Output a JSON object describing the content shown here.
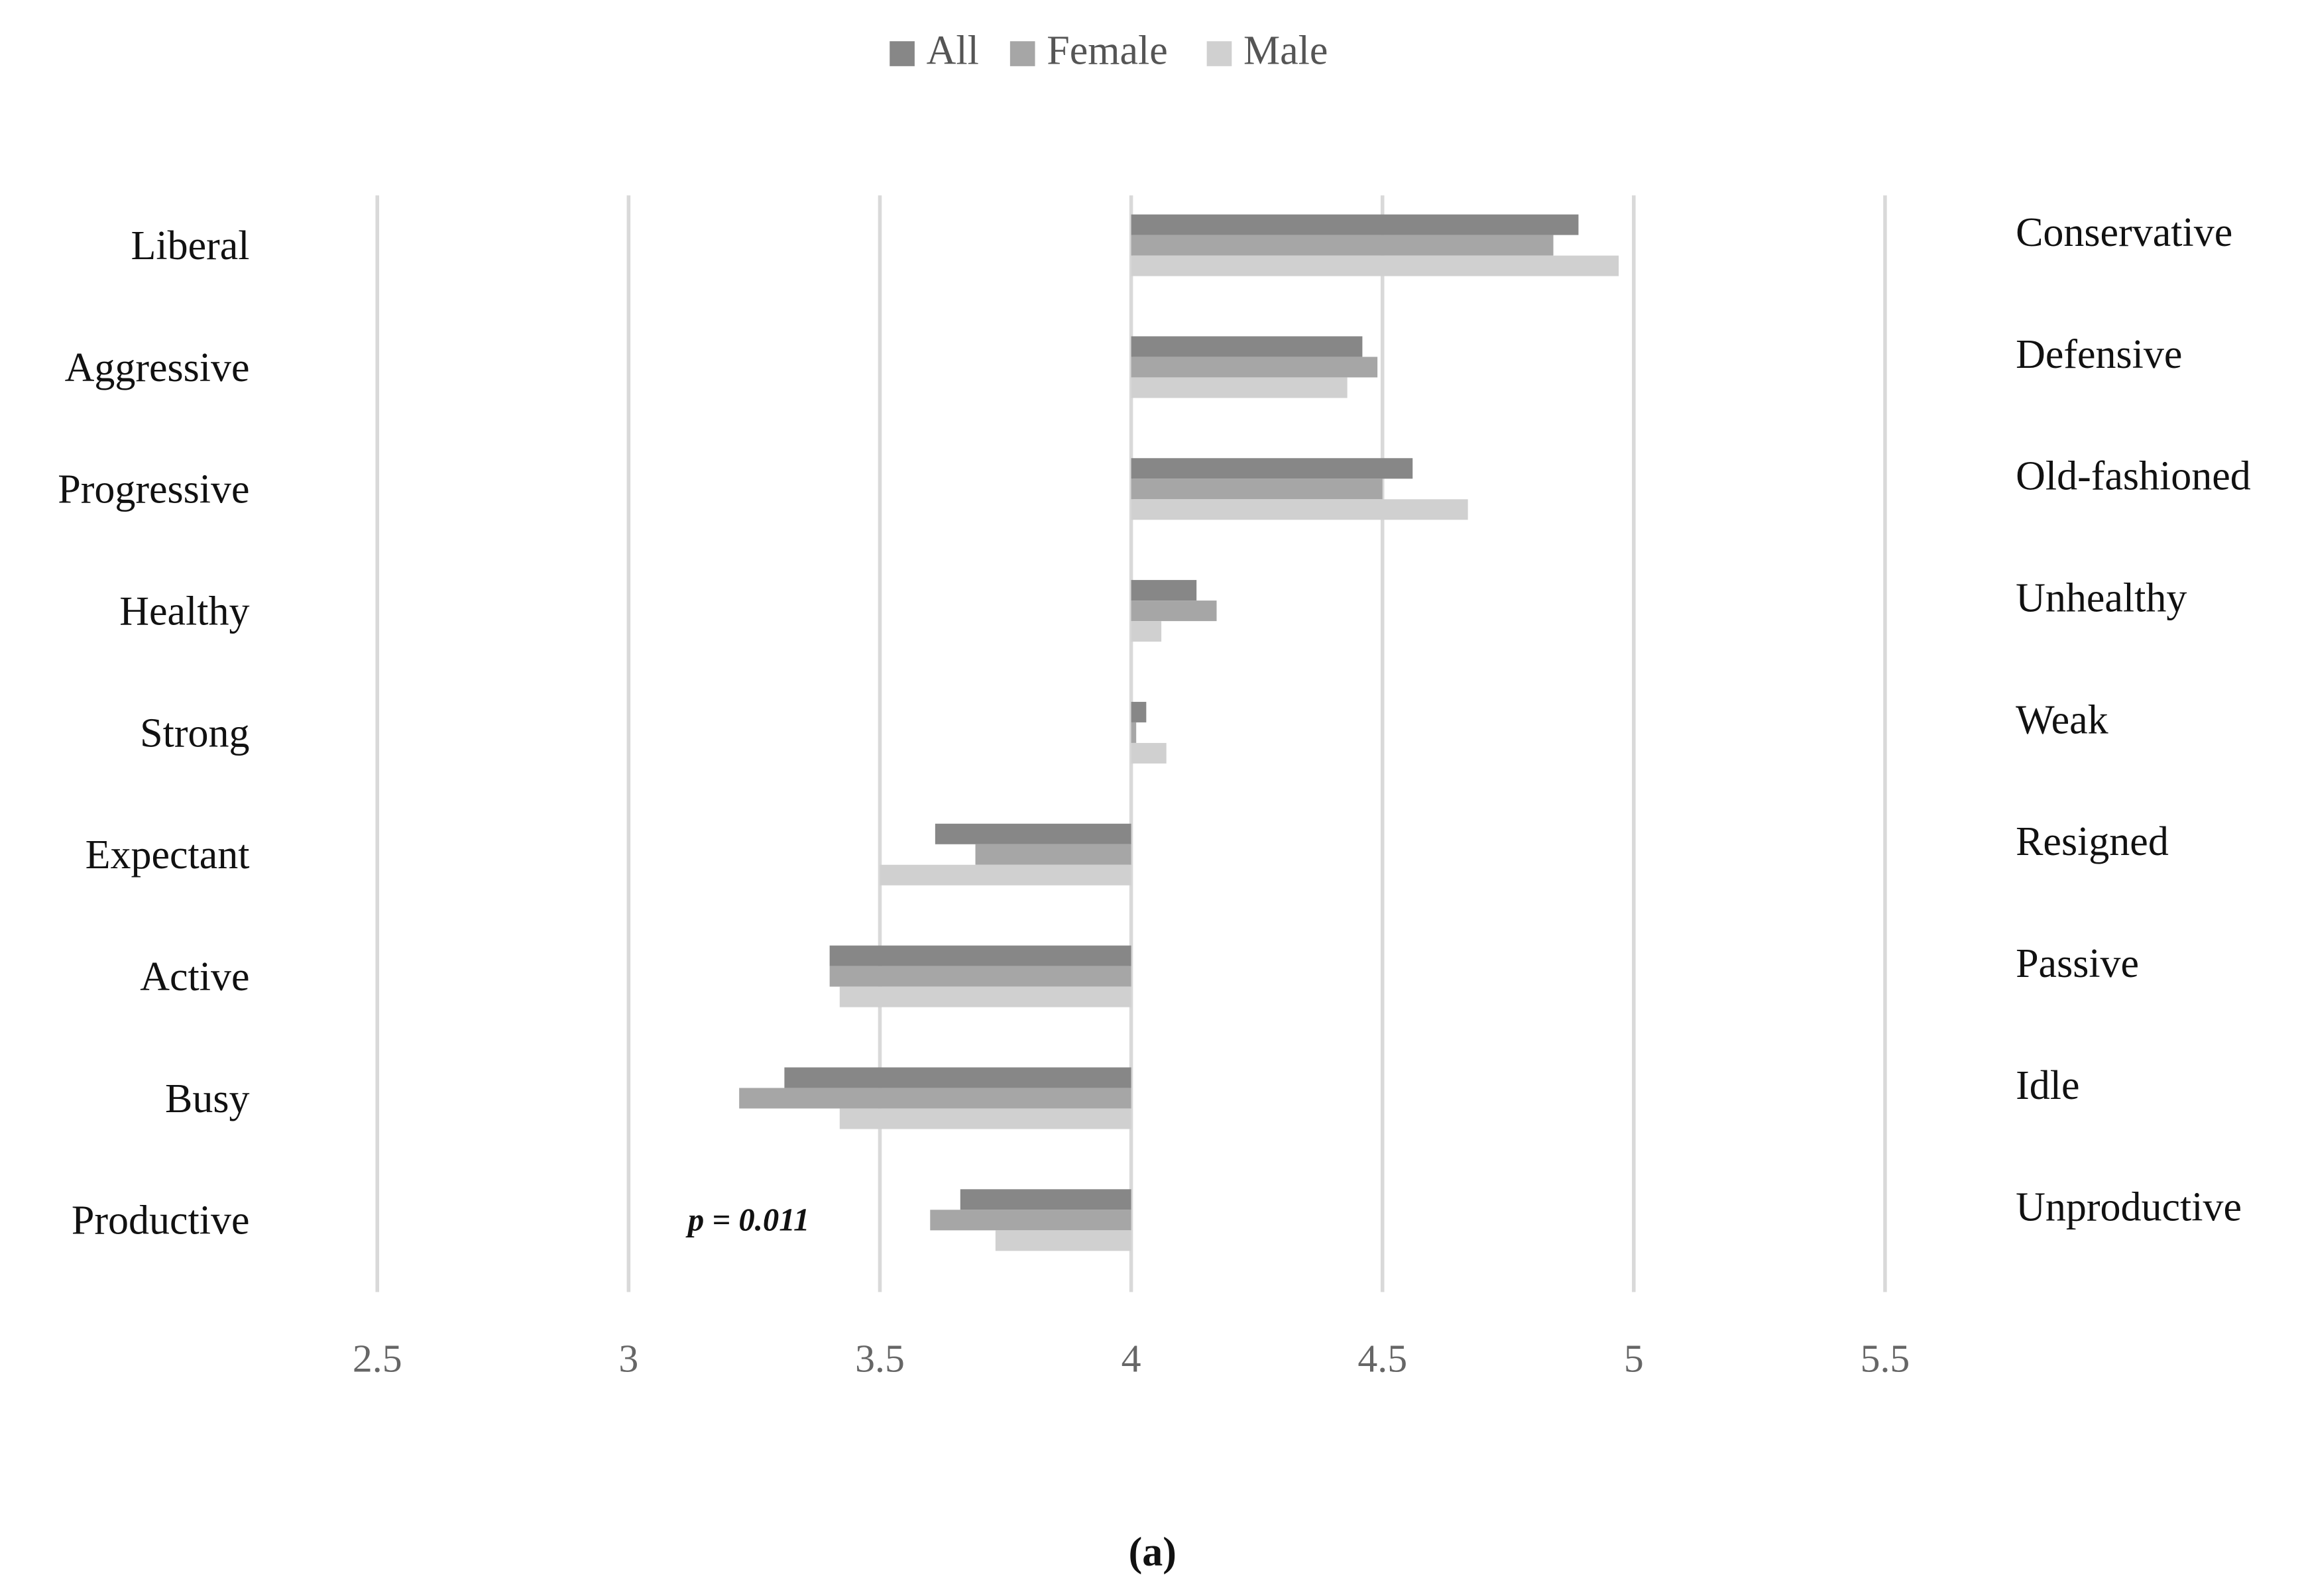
{
  "chart_data": {
    "type": "bar",
    "orientation": "horizontal",
    "base": 4,
    "categories": [
      "Liberal",
      "Aggressive",
      "Progressive",
      "Healthy",
      "Strong",
      "Expectant",
      "Active",
      "Busy",
      "Productive"
    ],
    "right_labels": [
      "Conservative",
      "Defensive",
      "Old-fashioned",
      "Unhealthy",
      "Weak",
      "Resigned",
      "Passive",
      "Idle",
      "Unproductive"
    ],
    "series": [
      {
        "name": "All",
        "color": "#878787",
        "values": [
          4.89,
          4.46,
          4.56,
          4.13,
          4.03,
          3.61,
          3.4,
          3.31,
          3.66
        ]
      },
      {
        "name": "Female",
        "color": "#a6a6a6",
        "values": [
          4.84,
          4.49,
          4.5,
          4.17,
          4.01,
          3.69,
          3.4,
          3.22,
          3.6
        ]
      },
      {
        "name": "Male",
        "color": "#d0d0d0",
        "values": [
          4.97,
          4.43,
          4.67,
          4.06,
          4.07,
          3.5,
          3.42,
          3.42,
          3.73
        ]
      }
    ],
    "xlim": [
      2.5,
      5.5
    ],
    "xticks": [
      2.5,
      3,
      3.5,
      4,
      4.5,
      5,
      5.5
    ],
    "grid": true,
    "legend": "top",
    "annotation": "p = 0.011",
    "caption": "(a)"
  }
}
